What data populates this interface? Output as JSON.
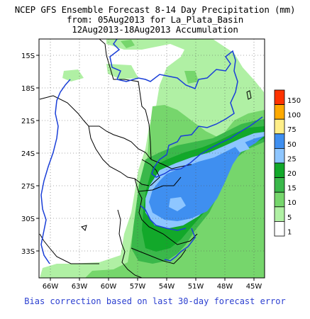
{
  "title": {
    "line1": "NCEP GFS Ensemble Forecast 8-14 Day Precipitation (mm)",
    "line2": "from: 05Aug2013  for La_Plata_Basin",
    "line3": "12Aug2013-18Aug2013 Accumulation"
  },
  "lat_labels": [
    "15S",
    "18S",
    "21S",
    "24S",
    "27S",
    "30S",
    "33S"
  ],
  "lon_labels": [
    "66W",
    "63W",
    "60W",
    "57W",
    "54W",
    "51W",
    "48W",
    "45W"
  ],
  "legend": {
    "levels": [
      "150",
      "100",
      "75",
      "50",
      "25",
      "20",
      "15",
      "10",
      "5",
      "1"
    ],
    "colors": [
      "#ff3300",
      "#ffaa00",
      "#ffee88",
      "#3f8ff0",
      "#8ec6ff",
      "#12a82a",
      "#3ab84a",
      "#76d66c",
      "#b0f0a4",
      "#ffffff"
    ]
  },
  "footer": "Bias correction based on last 30-day forecast error"
}
